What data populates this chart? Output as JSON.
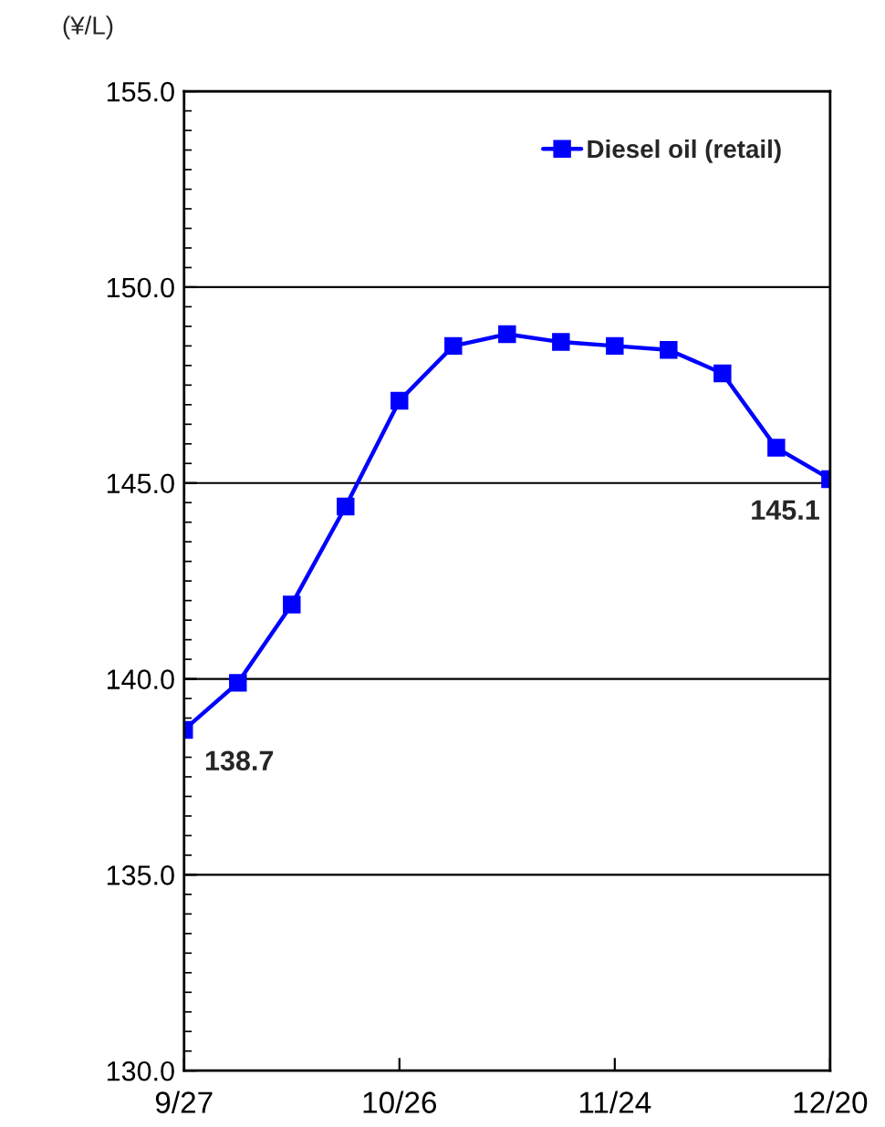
{
  "chart_data": {
    "type": "line",
    "ylabel": "(¥/L)",
    "categories": [
      "9/27",
      null,
      null,
      null,
      "10/26",
      null,
      null,
      null,
      "11/24",
      null,
      null,
      null,
      "12/20"
    ],
    "series": [
      {
        "name": "Diesel oil (retail)",
        "color": "#0000ff",
        "values": [
          138.7,
          139.9,
          141.9,
          144.4,
          147.1,
          148.5,
          148.8,
          148.6,
          148.5,
          148.4,
          147.8,
          145.9,
          145.1
        ],
        "value_labels": [
          "138.7",
          null,
          null,
          null,
          null,
          null,
          null,
          null,
          null,
          null,
          null,
          null,
          "145.1"
        ]
      }
    ],
    "ylim": [
      130,
      155
    ],
    "yticks": [
      {
        "value": 130,
        "label": "130.0"
      },
      {
        "value": 135,
        "label": "135.0"
      },
      {
        "value": 140,
        "label": "140.0"
      },
      {
        "value": 145,
        "label": "145.0"
      },
      {
        "value": 150,
        "label": "150.0"
      },
      {
        "value": 155,
        "label": "155.0"
      }
    ],
    "grid": "y",
    "legend": "top right",
    "marker": "square",
    "line_style": "solid"
  }
}
